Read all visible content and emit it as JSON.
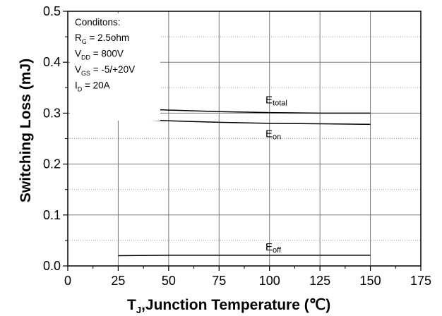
{
  "chart_data": {
    "type": "line",
    "xlabel_main": "T",
    "xlabel_sub": "J",
    "xlabel_rest": ",Junction Temperature (℃)",
    "ylabel": "Switching Loss (mJ)",
    "xlim": [
      0,
      175
    ],
    "ylim": [
      0.0,
      0.5
    ],
    "xticks": [
      0,
      25,
      50,
      75,
      100,
      125,
      150,
      175
    ],
    "xtick_labels": [
      "0",
      "25",
      "50",
      "75",
      "100",
      "125",
      "150",
      "175"
    ],
    "yticks": [
      0.0,
      0.1,
      0.2,
      0.3,
      0.4,
      0.5
    ],
    "ytick_labels": [
      "0.0",
      "0.1",
      "0.2",
      "0.3",
      "0.4",
      "0.5"
    ],
    "grid": true,
    "conditions": {
      "title": "Conditons:",
      "lines": [
        {
          "main": "R",
          "sub": "G",
          "rest": " = 2.5ohm"
        },
        {
          "main": "V",
          "sub": "DD",
          "rest": " = 800V"
        },
        {
          "main": "V",
          "sub": "GS",
          "rest": " = -5/+20V"
        },
        {
          "main": "I",
          "sub": "D",
          "rest": " = 20A"
        }
      ]
    },
    "series": [
      {
        "name_main": "E",
        "name_sub": "total",
        "x": [
          25,
          50,
          75,
          100,
          125,
          150
        ],
        "values": [
          0.31,
          0.306,
          0.303,
          0.301,
          0.3,
          0.3
        ]
      },
      {
        "name_main": "E",
        "name_sub": "on",
        "x": [
          25,
          50,
          75,
          100,
          125,
          150
        ],
        "values": [
          0.289,
          0.285,
          0.282,
          0.28,
          0.279,
          0.278
        ]
      },
      {
        "name_main": "E",
        "name_sub": "off",
        "x": [
          25,
          50,
          75,
          100,
          125,
          150
        ],
        "values": [
          0.02,
          0.021,
          0.021,
          0.021,
          0.021,
          0.021
        ]
      }
    ]
  }
}
